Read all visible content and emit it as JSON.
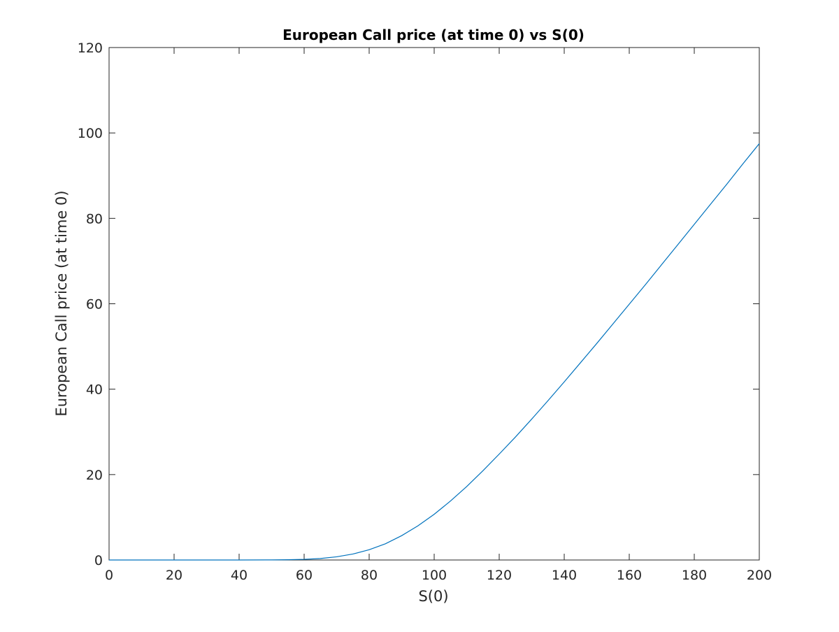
{
  "chart_data": {
    "type": "line",
    "title": "European Call price (at time 0) vs S(0)",
    "xlabel": "S(0)",
    "ylabel": "European Call price (at time 0)",
    "xlim": [
      0,
      200
    ],
    "ylim": [
      0,
      120
    ],
    "xticks": [
      0,
      20,
      40,
      60,
      80,
      100,
      120,
      140,
      160,
      180,
      200
    ],
    "yticks": [
      0,
      20,
      40,
      60,
      80,
      100,
      120
    ],
    "xtick_labels": [
      "0",
      "20",
      "40",
      "60",
      "80",
      "100",
      "120",
      "140",
      "160",
      "180",
      "200"
    ],
    "ytick_labels": [
      "0",
      "20",
      "40",
      "60",
      "80",
      "100",
      "120"
    ],
    "grid": false,
    "box": true,
    "series": [
      {
        "color": "#0072BD",
        "x": [
          0,
          10,
          20,
          30,
          40,
          50,
          55,
          60,
          65,
          70,
          75,
          80,
          85,
          90,
          95,
          100,
          105,
          110,
          115,
          120,
          125,
          130,
          135,
          140,
          145,
          150,
          155,
          160,
          165,
          170,
          175,
          180,
          185,
          190,
          195,
          200
        ],
        "y": [
          0,
          0,
          0,
          0,
          0,
          0.02,
          0.06,
          0.15,
          0.35,
          0.75,
          1.4,
          2.4,
          3.8,
          5.7,
          8.0,
          10.7,
          13.8,
          17.2,
          20.9,
          24.8,
          28.8,
          33.0,
          37.3,
          41.7,
          46.2,
          50.7,
          55.3,
          59.9,
          64.5,
          69.2,
          73.9,
          78.6,
          83.3,
          88.0,
          92.8,
          97.5
        ]
      }
    ]
  }
}
